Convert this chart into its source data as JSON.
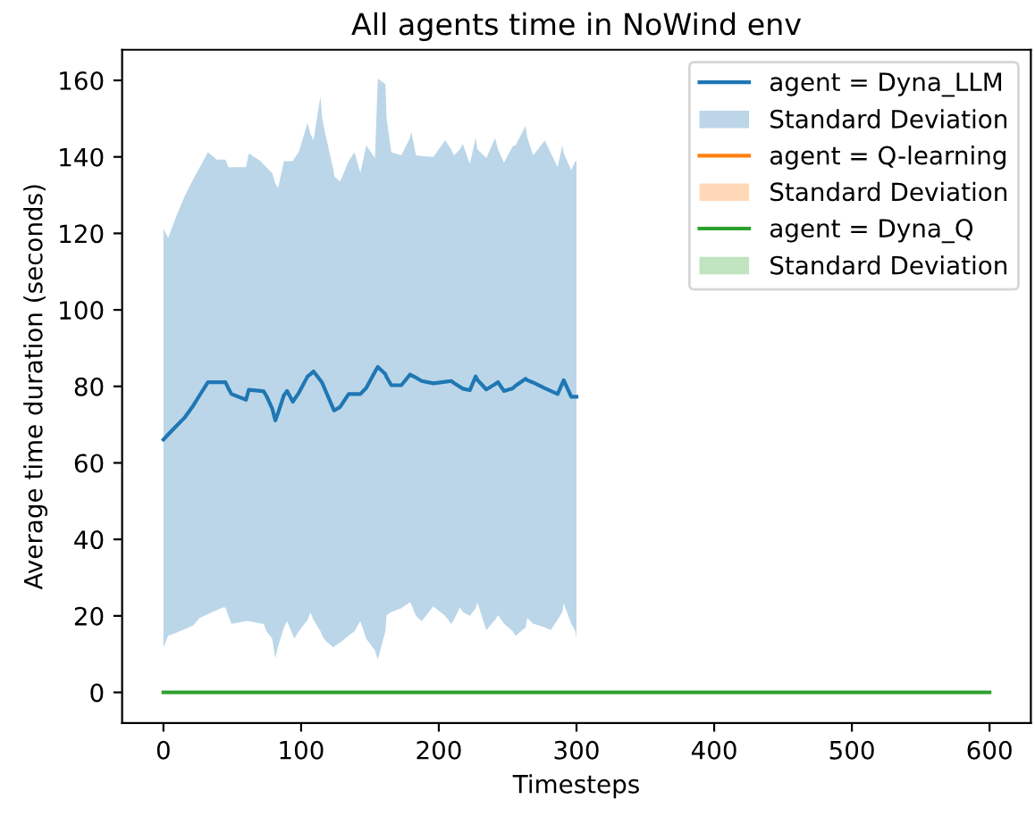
{
  "chart_data": {
    "type": "line",
    "title": "All agents time in NoWind env",
    "xlabel": "Timesteps",
    "ylabel": "Average time duration (seconds)",
    "xlim": [
      -30,
      630
    ],
    "xticks": [
      0,
      100,
      200,
      300,
      400,
      500,
      600
    ],
    "ylim": [
      -8,
      168
    ],
    "yticks": [
      0,
      20,
      40,
      60,
      80,
      100,
      120,
      140,
      160
    ],
    "legend": "top right",
    "grid": false,
    "series": [
      {
        "name": "agent = Dyna_LLM",
        "color": "#1f77b4",
        "x": [
          0,
          3.4,
          9,
          15.3,
          21.7,
          26,
          32.3,
          38.7,
          43,
          45,
          47.2,
          49.4,
          60,
          62,
          70.6,
          72.8,
          74.8,
          79,
          81.3,
          83.3,
          87.5,
          89.8,
          94,
          94.9,
          98.3,
          104.7,
          106.8,
          109,
          114,
          115.3,
          117.7,
          123.8,
          124,
          128.3,
          134.5,
          138.8,
          143,
          147.3,
          153.6,
          155.7,
          161.2,
          162.1,
          165.5,
          172.8,
          179.1,
          180,
          183.4,
          187.6,
          196,
          204.6,
          209,
          211,
          215.3,
          217.4,
          222.5,
          226.8,
          228,
          234.5,
          240.9,
          243,
          247.3,
          253.7,
          255.8,
          263,
          264.3,
          268.5,
          277,
          281.3,
          286.3,
          289.7,
          290.7,
          296.2,
          299.2,
          300
        ],
        "values": [
          66.1,
          67.4,
          69.5,
          71.8,
          75,
          77.5,
          81.1,
          81.1,
          81.1,
          81.1,
          79.5,
          78,
          76.5,
          79.1,
          78.8,
          78.7,
          77.5,
          74.2,
          71.1,
          73.1,
          77.7,
          78.8,
          76,
          76.5,
          78.3,
          82.6,
          83.2,
          83.9,
          81.6,
          80.9,
          78.9,
          73.8,
          73.7,
          74.6,
          78,
          78,
          78,
          79.6,
          83.8,
          85.1,
          83.2,
          82.4,
          80.3,
          80.3,
          83.1,
          82.9,
          82.3,
          81.4,
          80.8,
          81.2,
          81.4,
          80.9,
          79.9,
          79.4,
          79,
          82.6,
          81.7,
          79.2,
          80.6,
          81.1,
          78.8,
          79.5,
          80.2,
          82,
          81.6,
          81,
          79.5,
          78.8,
          78,
          80.8,
          81.6,
          77.3,
          77.3,
          77.3
        ],
        "lower": [
          11.7,
          14.8,
          15.5,
          16.5,
          17.5,
          19.4,
          20.5,
          21.5,
          22.2,
          22.2,
          20,
          17.9,
          18.6,
          18.6,
          18,
          17.9,
          16,
          14,
          8.9,
          12,
          17,
          18.6,
          15,
          14,
          16,
          19,
          20.9,
          19,
          16,
          14.8,
          13.5,
          11.7,
          12,
          13,
          14.8,
          16,
          18.6,
          14,
          11,
          8.6,
          16,
          20.2,
          21,
          22,
          23.6,
          23,
          20,
          18.6,
          22.5,
          20,
          17.9,
          19,
          22.2,
          21,
          20,
          22,
          23.6,
          16.3,
          19,
          20.2,
          18,
          16,
          14.8,
          17,
          19.4,
          18,
          17,
          16.3,
          19,
          21,
          23.3,
          17.9,
          16,
          14
        ],
        "upper": [
          121.2,
          118.8,
          124.2,
          129.6,
          134.2,
          137,
          141.2,
          139.3,
          139.3,
          139.3,
          137.3,
          137.3,
          137.3,
          140.9,
          138.9,
          138,
          137.3,
          135.8,
          133,
          131.9,
          138.9,
          138.9,
          138.9,
          139.5,
          141.2,
          148.9,
          146,
          144.3,
          155.8,
          150,
          145.8,
          136,
          135,
          133.5,
          138.9,
          141.2,
          135.8,
          143,
          139.7,
          160.5,
          159,
          150,
          141.2,
          140.4,
          145,
          146.6,
          140.4,
          140.2,
          140,
          144.3,
          142,
          140.4,
          142,
          143.4,
          138.2,
          144.9,
          142,
          139.7,
          144.9,
          142,
          138.5,
          142.8,
          143,
          148.1,
          145,
          140.4,
          144.3,
          141,
          137.3,
          143,
          141,
          136.5,
          138.9,
          138.9
        ]
      },
      {
        "type": "area",
        "name": "Standard Deviation",
        "color": "#bcd6e8"
      },
      {
        "name": "agent = Q-learning",
        "color": "#ff7f0e"
      },
      {
        "type": "area",
        "name": "Standard Deviation",
        "color": "#ffd9b7"
      },
      {
        "name": "agent = Dyna_Q",
        "color": "#2ca02c",
        "x": [
          0,
          600
        ],
        "values": [
          0,
          0
        ]
      },
      {
        "type": "area",
        "name": "Standard Deviation",
        "color": "#c0e3c0"
      }
    ]
  }
}
